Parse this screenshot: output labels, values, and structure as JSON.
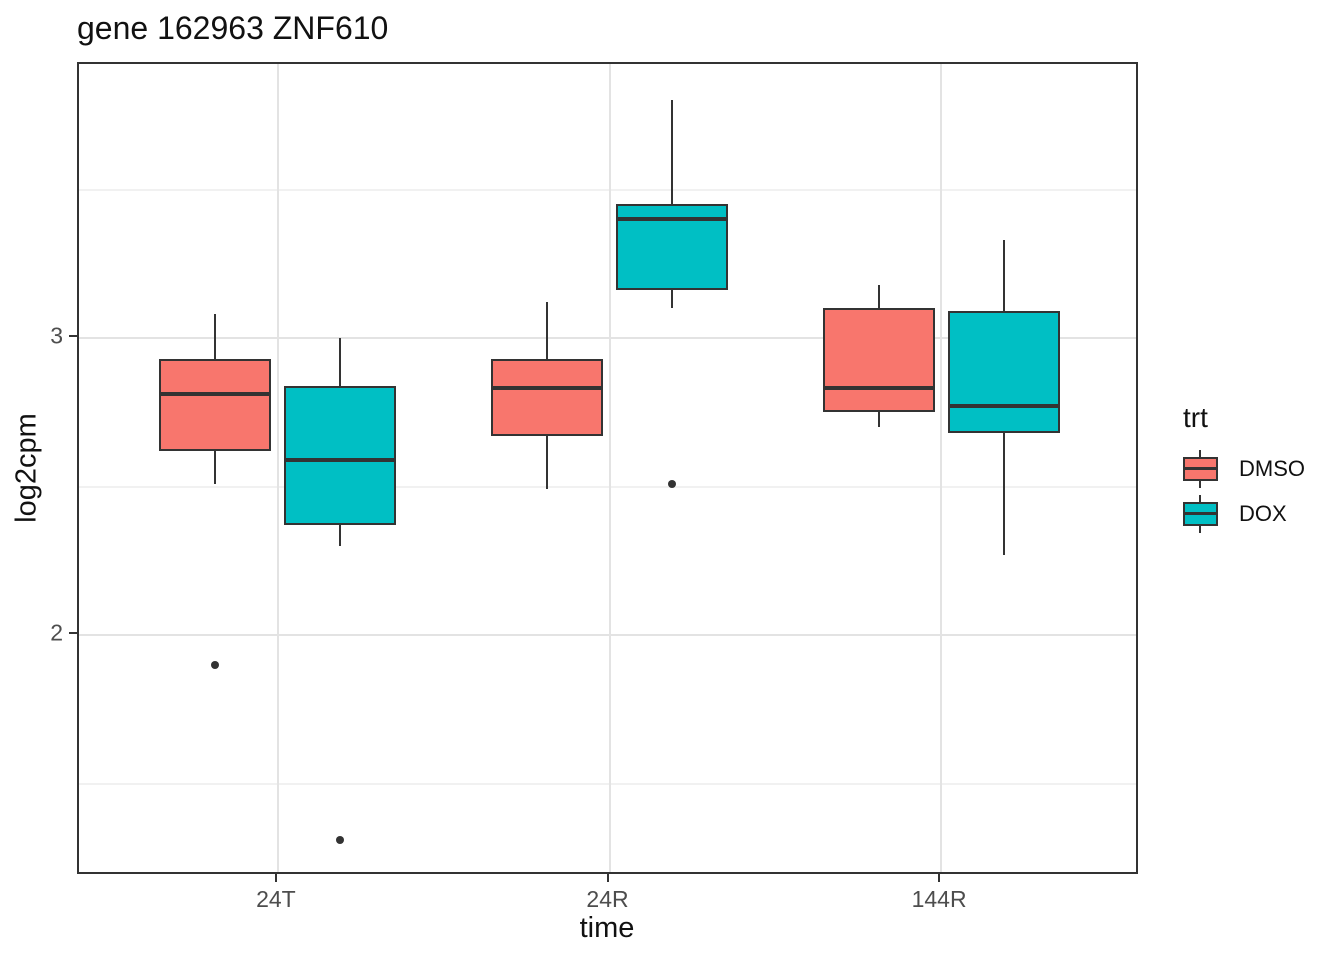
{
  "title": "gene 162963 ZNF610",
  "colors": {
    "dmso": "#F8766D",
    "dox": "#00BFC4",
    "outline": "#333333",
    "grid_major": "#e3e3e3",
    "grid_minor": "#f1f1f1",
    "tick_text": "#4d4d4d"
  },
  "legend": {
    "title": "trt",
    "entries": [
      {
        "label": "DMSO",
        "color": "#F8766D"
      },
      {
        "label": "DOX",
        "color": "#00BFC4"
      }
    ]
  },
  "chart_data": {
    "type": "boxplot",
    "title": "gene 162963 ZNF610",
    "xlabel": "time",
    "ylabel": "log2cpm",
    "categories": [
      "24T",
      "24R",
      "144R"
    ],
    "y_ticks": [
      2,
      3
    ],
    "y_minor_gridlines": [
      1.5,
      2.5,
      3.5
    ],
    "ylim": [
      1.19,
      3.92
    ],
    "grid": "major-horizontal, minor-horizontal, major-vertical-at-categories",
    "legend_position": "right",
    "series": [
      {
        "name": "DMSO",
        "color": "#F8766D",
        "boxes": [
          {
            "category": "24T",
            "whisker_low": 2.51,
            "q1": 2.62,
            "median": 2.81,
            "q3": 2.93,
            "whisker_high": 3.08,
            "outliers": [
              1.9
            ]
          },
          {
            "category": "24R",
            "whisker_low": 2.49,
            "q1": 2.67,
            "median": 2.83,
            "q3": 2.93,
            "whisker_high": 3.12,
            "outliers": []
          },
          {
            "category": "144R",
            "whisker_low": 2.7,
            "q1": 2.75,
            "median": 2.83,
            "q3": 3.1,
            "whisker_high": 3.18,
            "outliers": []
          }
        ]
      },
      {
        "name": "DOX",
        "color": "#00BFC4",
        "boxes": [
          {
            "category": "24T",
            "whisker_low": 2.3,
            "q1": 2.37,
            "median": 2.59,
            "q3": 2.84,
            "whisker_high": 3.0,
            "outliers": [
              1.31
            ]
          },
          {
            "category": "24R",
            "whisker_low": 3.1,
            "q1": 3.16,
            "median": 3.4,
            "q3": 3.45,
            "whisker_high": 3.8,
            "outliers": [
              2.51
            ]
          },
          {
            "category": "144R",
            "whisker_low": 2.27,
            "q1": 2.68,
            "median": 2.77,
            "q3": 3.09,
            "whisker_high": 3.33,
            "outliers": []
          }
        ]
      }
    ]
  }
}
